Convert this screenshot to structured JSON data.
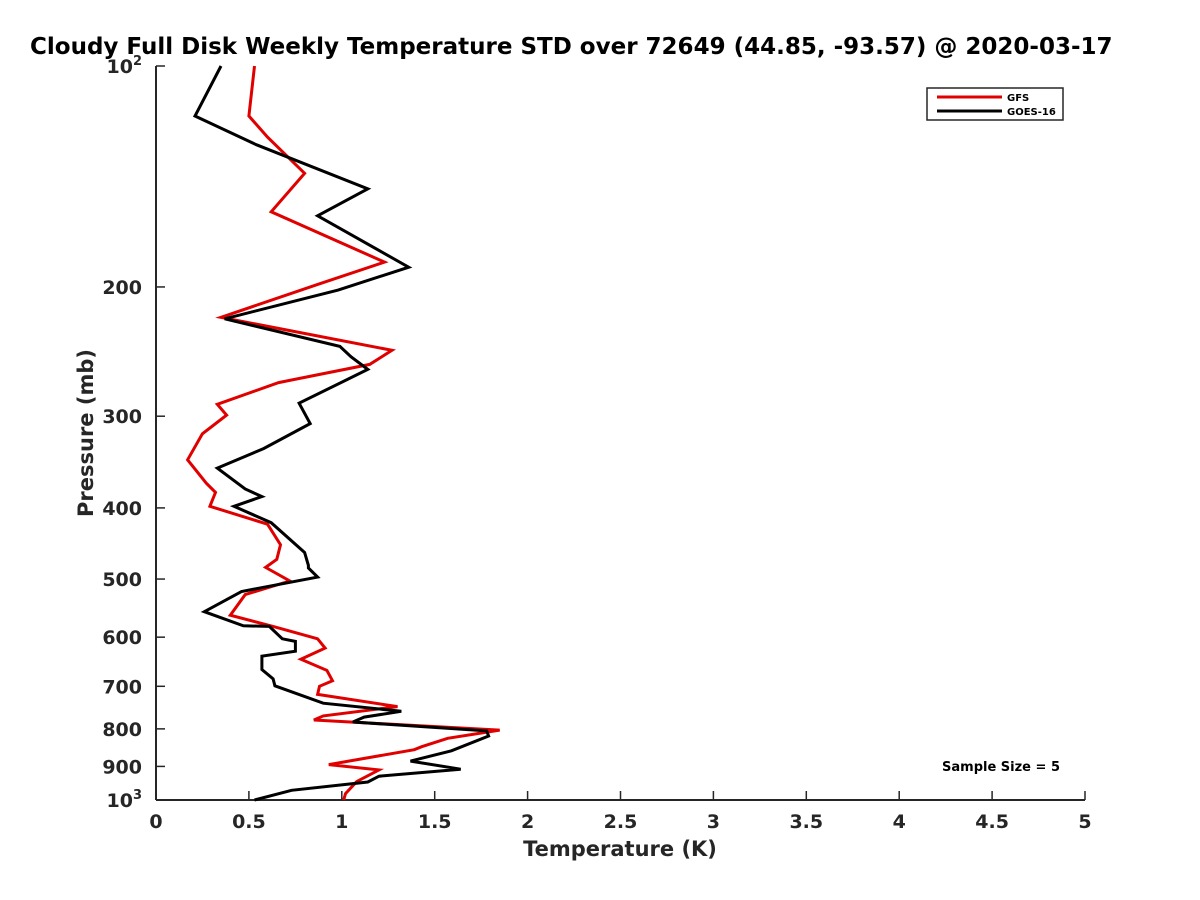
{
  "chart_data": {
    "type": "line",
    "title": "Cloudy Full Disk Weekly Temperature STD over 72649 (44.85, -93.57) @ 2020-03-17",
    "xlabel": "Temperature (K)",
    "ylabel": "Pressure (mb)",
    "xlim": [
      0,
      5
    ],
    "ylim": [
      100,
      1000
    ],
    "y_scale": "log",
    "y_reversed": true,
    "grid": false,
    "legend_position": "top-right",
    "x_ticks": [
      0,
      0.5,
      1,
      1.5,
      2,
      2.5,
      3,
      3.5,
      4,
      4.5,
      5
    ],
    "x_tick_labels": [
      "0",
      "0.5",
      "1",
      "1.5",
      "2",
      "2.5",
      "3",
      "3.5",
      "4",
      "4.5",
      "5"
    ],
    "y_ticks": [
      {
        "value": 100,
        "base": "10",
        "exp": "2"
      },
      {
        "value": 200,
        "label": "200"
      },
      {
        "value": 300,
        "label": "300"
      },
      {
        "value": 400,
        "label": "400"
      },
      {
        "value": 500,
        "label": "500"
      },
      {
        "value": 600,
        "label": "600"
      },
      {
        "value": 700,
        "label": "700"
      },
      {
        "value": 800,
        "label": "800"
      },
      {
        "value": 900,
        "label": "900"
      },
      {
        "value": 1000,
        "base": "10",
        "exp": "3"
      }
    ],
    "series": [
      {
        "name": "GFS",
        "color": "#e00000",
        "points": [
          [
            0.53,
            100
          ],
          [
            0.5,
            117
          ],
          [
            0.6,
            125
          ],
          [
            0.8,
            140
          ],
          [
            0.62,
            158
          ],
          [
            1.23,
            185
          ],
          [
            0.88,
            198
          ],
          [
            0.35,
            220
          ],
          [
            1.27,
            244
          ],
          [
            1.15,
            255
          ],
          [
            0.66,
            270
          ],
          [
            0.33,
            289
          ],
          [
            0.38,
            299
          ],
          [
            0.25,
            317
          ],
          [
            0.17,
            344
          ],
          [
            0.27,
            370
          ],
          [
            0.32,
            381
          ],
          [
            0.29,
            398
          ],
          [
            0.6,
            421
          ],
          [
            0.67,
            449
          ],
          [
            0.65,
            470
          ],
          [
            0.59,
            482
          ],
          [
            0.72,
            503
          ],
          [
            0.48,
            525
          ],
          [
            0.4,
            560
          ],
          [
            0.63,
            580
          ],
          [
            0.87,
            603
          ],
          [
            0.91,
            621
          ],
          [
            0.78,
            643
          ],
          [
            0.92,
            666
          ],
          [
            0.95,
            688
          ],
          [
            0.88,
            700
          ],
          [
            0.87,
            718
          ],
          [
            1.3,
            746
          ],
          [
            0.9,
            768
          ],
          [
            0.85,
            778
          ],
          [
            1.85,
            803
          ],
          [
            1.57,
            824
          ],
          [
            1.43,
            846
          ],
          [
            1.39,
            854
          ],
          [
            0.93,
            895
          ],
          [
            1.2,
            910
          ],
          [
            1.08,
            944
          ],
          [
            1.02,
            980
          ],
          [
            1.01,
            1000
          ]
        ]
      },
      {
        "name": "GOES-16",
        "color": "#000000",
        "points": [
          [
            0.35,
            100
          ],
          [
            0.21,
            117
          ],
          [
            0.54,
            128
          ],
          [
            1.14,
            147
          ],
          [
            0.87,
            160
          ],
          [
            1.36,
            188
          ],
          [
            0.98,
            202
          ],
          [
            0.37,
            221
          ],
          [
            0.99,
            241
          ],
          [
            1.05,
            249
          ],
          [
            1.14,
            259
          ],
          [
            0.77,
            288
          ],
          [
            0.83,
            307
          ],
          [
            0.58,
            332
          ],
          [
            0.33,
            353
          ],
          [
            0.48,
            377
          ],
          [
            0.57,
            386
          ],
          [
            0.42,
            398
          ],
          [
            0.62,
            419
          ],
          [
            0.8,
            460
          ],
          [
            0.82,
            479
          ],
          [
            0.82,
            483
          ],
          [
            0.87,
            497
          ],
          [
            0.46,
            520
          ],
          [
            0.26,
            554
          ],
          [
            0.47,
            579
          ],
          [
            0.61,
            580
          ],
          [
            0.68,
            603
          ],
          [
            0.75,
            608
          ],
          [
            0.75,
            627
          ],
          [
            0.57,
            637
          ],
          [
            0.57,
            664
          ],
          [
            0.63,
            684
          ],
          [
            0.64,
            699
          ],
          [
            0.9,
            738
          ],
          [
            1.32,
            757
          ],
          [
            1.12,
            771
          ],
          [
            1.06,
            783
          ],
          [
            1.78,
            805
          ],
          [
            1.79,
            818
          ],
          [
            1.59,
            857
          ],
          [
            1.37,
            885
          ],
          [
            1.64,
            908
          ],
          [
            1.2,
            928
          ],
          [
            1.14,
            945
          ],
          [
            0.73,
            970
          ],
          [
            0.53,
            1000
          ]
        ]
      }
    ],
    "annotations": [
      "Sample Size = 5"
    ]
  }
}
